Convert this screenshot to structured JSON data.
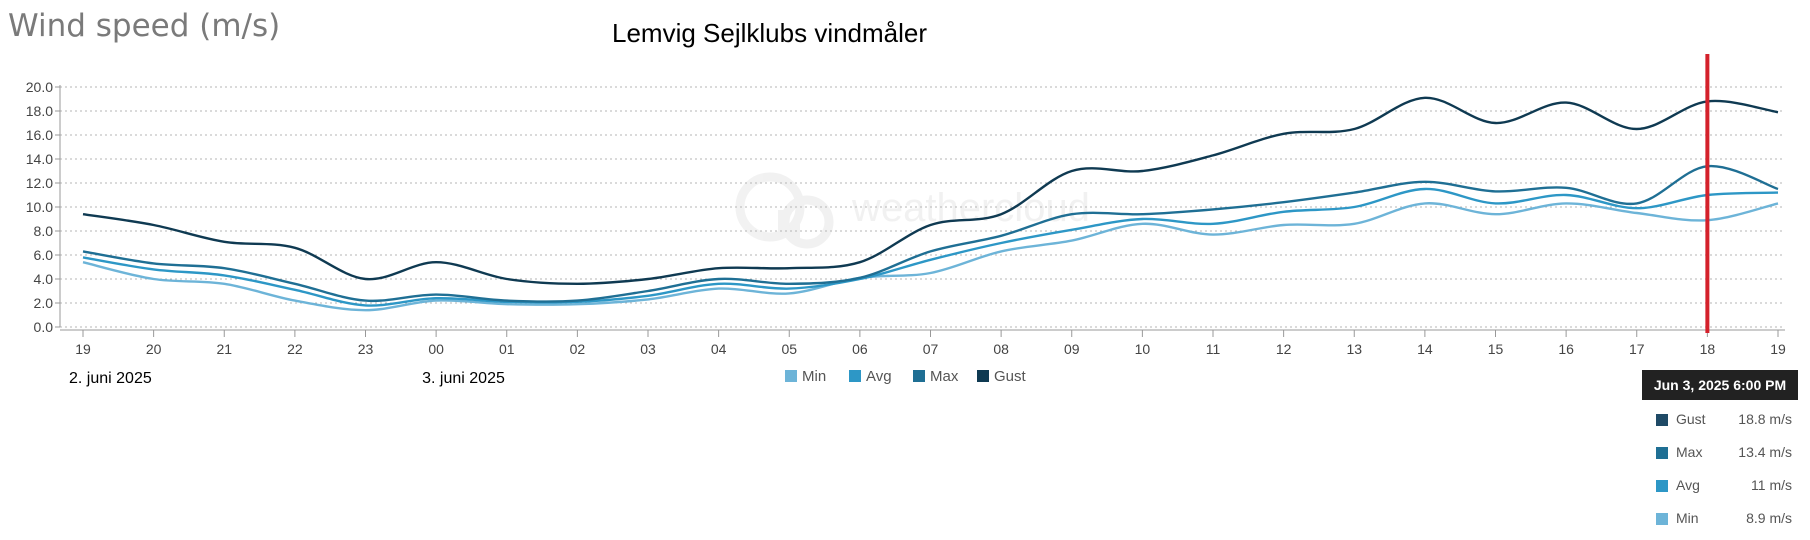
{
  "header": {
    "title": "Wind speed (m/s)",
    "subtitle": "Lemvig Sejlklubs vindmåler"
  },
  "dates": [
    {
      "label": "2. juni 2025",
      "x_index": 0
    },
    {
      "label": "3. juni 2025",
      "x_index": 5
    }
  ],
  "watermark": "weathercloud",
  "marker": {
    "x_index": 23,
    "color": "#d4212b"
  },
  "tooltip": {
    "header": "Jun 3, 2025 6:00 PM",
    "rows": [
      {
        "name": "Gust",
        "value": "18.8 m/s",
        "color": "#1f4a66"
      },
      {
        "name": "Max",
        "value": "13.4 m/s",
        "color": "#1f6f94"
      },
      {
        "name": "Avg",
        "value": "11 m/s",
        "color": "#2d97c6"
      },
      {
        "name": "Min",
        "value": "8.9 m/s",
        "color": "#6db4d8"
      }
    ]
  },
  "chart_data": {
    "type": "line",
    "title": "Wind speed (m/s)",
    "subtitle": "Lemvig Sejlklubs vindmåler",
    "categories": [
      "19",
      "20",
      "21",
      "22",
      "23",
      "00",
      "01",
      "02",
      "03",
      "04",
      "05",
      "06",
      "07",
      "08",
      "09",
      "10",
      "11",
      "12",
      "13",
      "14",
      "15",
      "16",
      "17",
      "18",
      "19"
    ],
    "ylim": [
      0,
      20
    ],
    "yticks": [
      "0.0",
      "2.0",
      "4.0",
      "6.0",
      "8.0",
      "10.0",
      "12.0",
      "14.0",
      "16.0",
      "18.0",
      "20.0"
    ],
    "grid": true,
    "legend_position": "bottom-center",
    "series": [
      {
        "name": "Min",
        "color": "#6db4d8",
        "values": [
          5.4,
          4.0,
          3.6,
          2.2,
          1.4,
          2.2,
          1.9,
          1.9,
          2.3,
          3.2,
          2.8,
          4.1,
          4.5,
          6.3,
          7.2,
          8.6,
          7.7,
          8.5,
          8.6,
          10.3,
          9.4,
          10.3,
          9.5,
          8.9,
          10.3
        ]
      },
      {
        "name": "Avg",
        "color": "#2d97c6",
        "values": [
          5.8,
          4.8,
          4.3,
          3.1,
          1.8,
          2.4,
          2.1,
          2.1,
          2.6,
          3.6,
          3.2,
          4.0,
          5.6,
          7.0,
          8.1,
          9.0,
          8.6,
          9.6,
          10.0,
          11.5,
          10.3,
          11.0,
          9.9,
          11.0,
          11.2
        ]
      },
      {
        "name": "Max",
        "color": "#1f6f94",
        "values": [
          6.3,
          5.3,
          4.9,
          3.6,
          2.2,
          2.7,
          2.2,
          2.2,
          3.0,
          4.0,
          3.6,
          4.1,
          6.3,
          7.6,
          9.4,
          9.4,
          9.8,
          10.4,
          11.2,
          12.1,
          11.3,
          11.6,
          10.3,
          13.4,
          11.5
        ]
      },
      {
        "name": "Gust",
        "color": "#0f3a52",
        "values": [
          9.4,
          8.5,
          7.1,
          6.6,
          4.0,
          5.4,
          4.0,
          3.6,
          4.0,
          4.9,
          4.9,
          5.4,
          8.5,
          9.4,
          13.0,
          13.0,
          14.3,
          16.1,
          16.5,
          19.1,
          17.0,
          18.7,
          16.5,
          18.8,
          17.9
        ]
      }
    ]
  }
}
